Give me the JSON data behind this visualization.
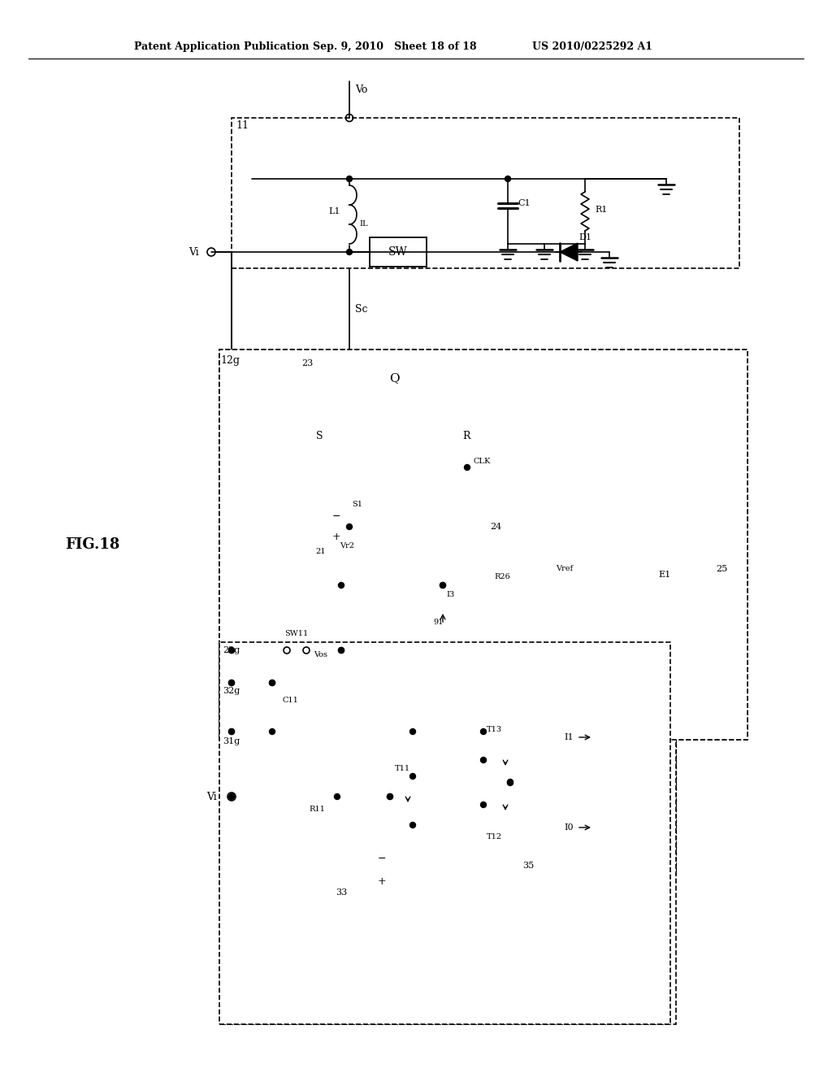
{
  "bg": "#ffffff",
  "header_left": "Patent Application Publication",
  "header_center": "Sep. 9, 2010   Sheet 18 of 18",
  "header_right": "US 2010/0225292 A1",
  "fig_label": "FIG.18"
}
